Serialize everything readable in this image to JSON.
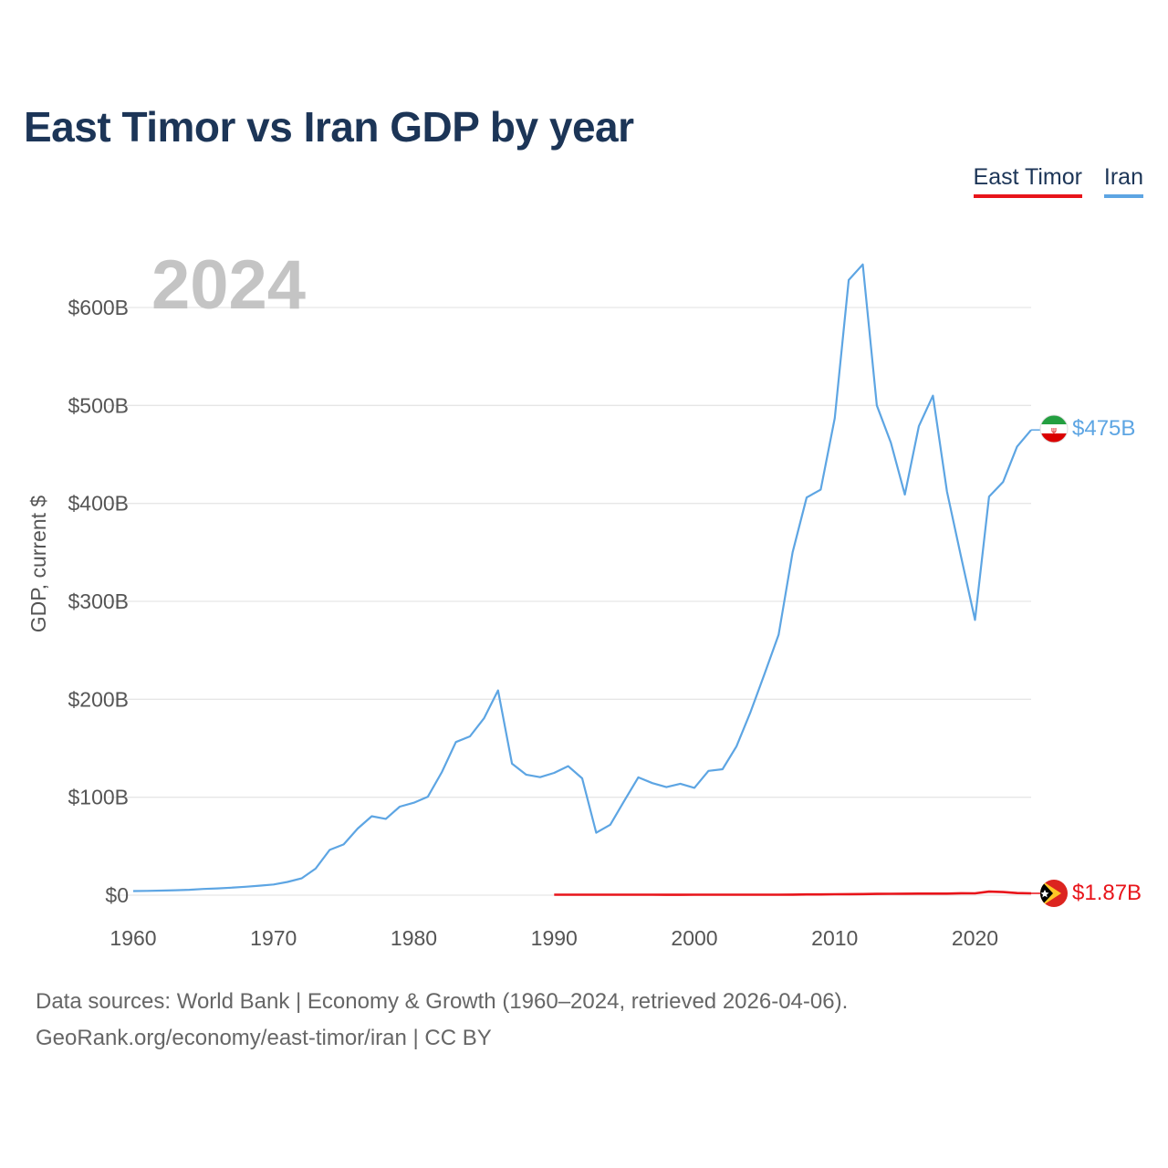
{
  "chart_data": {
    "type": "line",
    "title": "East Timor vs Iran GDP by year",
    "xlabel": "",
    "ylabel": "GDP, current $",
    "xlim": [
      1960,
      2024
    ],
    "ylim": [
      0,
      600
    ],
    "y_unit": "billions USD",
    "x_ticks": [
      1960,
      1970,
      1980,
      1990,
      2000,
      2010,
      2020
    ],
    "x_tick_labels": [
      "1960",
      "1970",
      "1980",
      "1990",
      "2000",
      "2010",
      "2020"
    ],
    "y_ticks": [
      0,
      100,
      200,
      300,
      400,
      500,
      600
    ],
    "y_tick_labels": [
      "$0",
      "$100B",
      "$200B",
      "$300B",
      "$400B",
      "$500B",
      "$600B"
    ],
    "watermark_year": "2024",
    "legend_position": "top-right",
    "series": [
      {
        "name": "East Timor",
        "color": "#e8141a",
        "end_label": "$1.87B",
        "flag": "east-timor-flag",
        "x": [
          1990,
          1991,
          1992,
          1993,
          1994,
          1995,
          1996,
          1997,
          1998,
          1999,
          2000,
          2001,
          2002,
          2003,
          2004,
          2005,
          2006,
          2007,
          2008,
          2009,
          2010,
          2011,
          2012,
          2013,
          2014,
          2015,
          2016,
          2017,
          2018,
          2019,
          2020,
          2021,
          2022,
          2023,
          2024
        ],
        "values": [
          0.5,
          0.5,
          0.5,
          0.5,
          0.5,
          0.5,
          0.5,
          0.5,
          0.4,
          0.4,
          0.5,
          0.5,
          0.5,
          0.5,
          0.5,
          0.5,
          0.5,
          0.6,
          0.7,
          0.7,
          0.9,
          1.0,
          1.1,
          1.3,
          1.4,
          1.5,
          1.6,
          1.6,
          1.6,
          2.0,
          1.9,
          3.6,
          3.2,
          2.1,
          1.87
        ]
      },
      {
        "name": "Iran",
        "color": "#5da5e3",
        "end_label": "$475B",
        "flag": "iran-flag",
        "x": [
          1960,
          1961,
          1962,
          1963,
          1964,
          1965,
          1966,
          1967,
          1968,
          1969,
          1970,
          1971,
          1972,
          1973,
          1974,
          1975,
          1976,
          1977,
          1978,
          1979,
          1980,
          1981,
          1982,
          1983,
          1984,
          1985,
          1986,
          1987,
          1988,
          1989,
          1990,
          1991,
          1992,
          1993,
          1994,
          1995,
          1996,
          1997,
          1998,
          1999,
          2000,
          2001,
          2002,
          2003,
          2004,
          2005,
          2006,
          2007,
          2008,
          2009,
          2010,
          2011,
          2012,
          2013,
          2014,
          2015,
          2016,
          2017,
          2018,
          2019,
          2020,
          2021,
          2022,
          2023,
          2024
        ],
        "values": [
          4.2,
          4.4,
          4.7,
          5.0,
          5.5,
          6.3,
          6.9,
          7.6,
          8.6,
          9.7,
          10.9,
          13.5,
          17.1,
          27.1,
          46.2,
          51.8,
          68.0,
          80.6,
          77.9,
          90.4,
          94.4,
          100.5,
          125.8,
          156.3,
          162.1,
          180.6,
          209.1,
          134.3,
          123.1,
          120.5,
          124.8,
          131.7,
          119.3,
          63.7,
          71.9,
          96.2,
          120.3,
          114.4,
          110.3,
          113.8,
          109.6,
          126.9,
          128.6,
          152.0,
          187.0,
          226.0,
          266.0,
          350.0,
          406.0,
          414.0,
          487.0,
          628.0,
          644.0,
          500.0,
          462.0,
          409.0,
          479.0,
          510.0,
          412.0,
          346.0,
          281.0,
          407.0,
          422.0,
          458.0,
          475.0
        ]
      }
    ]
  },
  "legend": {
    "items": [
      {
        "label": "East Timor"
      },
      {
        "label": "Iran"
      }
    ]
  },
  "footer": {
    "sources": "Data sources: World Bank | Economy & Growth (1960–2024, retrieved 2026-04-06).",
    "url": "GeoRank.org/economy/east-timor/iran | CC BY"
  }
}
